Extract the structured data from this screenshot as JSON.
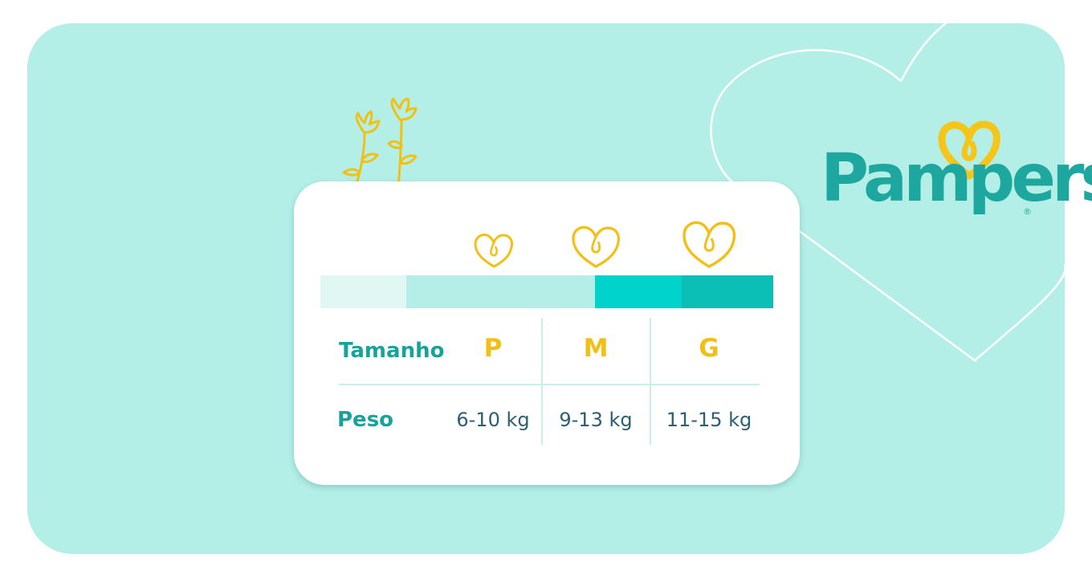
{
  "brand": {
    "name": "Pampers",
    "registered_mark": "®"
  },
  "colors": {
    "background": "#b3efe7",
    "teal": "#17a39a",
    "gold": "#f2c014",
    "grid": "#c9efe9",
    "brand_teal": "#1ea79e"
  },
  "size_chart": {
    "row_labels": {
      "size": "Tamanho",
      "weight": "Peso"
    },
    "sizes": [
      {
        "letter": "P",
        "weight": "6-10 kg"
      },
      {
        "letter": "M",
        "weight": "9-13 kg"
      },
      {
        "letter": "G",
        "weight": "11-15 kg"
      }
    ],
    "bar_colors": [
      "#e0f7f4",
      "#b5eee6",
      "#00d3cb",
      "#0bbfb6"
    ]
  },
  "icons": [
    "heart-icon",
    "flower-icon",
    "heart-outline-icon",
    "pampers-heart-icon"
  ]
}
